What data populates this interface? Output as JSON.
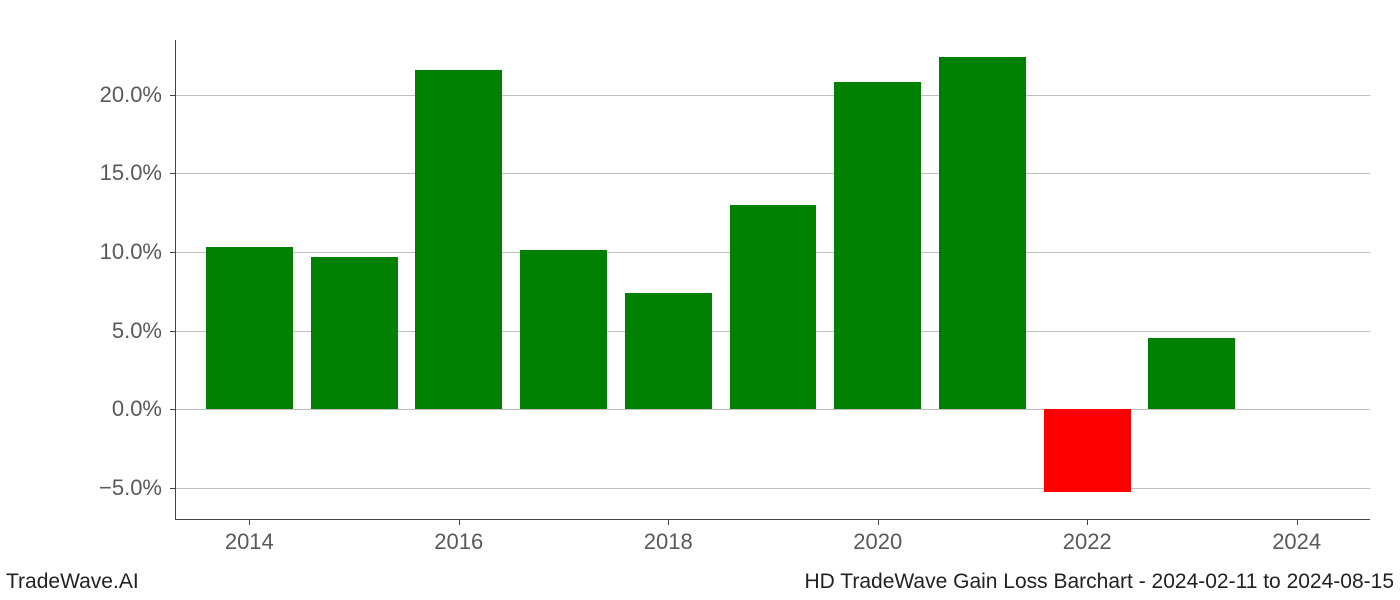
{
  "chart": {
    "type": "bar",
    "background_color": "#ffffff",
    "grid_color": "#bfbfbf",
    "axis_color": "#444444",
    "tick_label_color": "#595959",
    "tick_label_fontsize": 22,
    "positive_color": "#008000",
    "negative_color": "#ff0000",
    "ylim": [
      -7,
      23.5
    ],
    "ytick_step": 5,
    "yticks": [
      {
        "value": -5,
        "label": "−5.0%"
      },
      {
        "value": 0,
        "label": "0.0%"
      },
      {
        "value": 5,
        "label": "5.0%"
      },
      {
        "value": 10,
        "label": "10.0%"
      },
      {
        "value": 15,
        "label": "15.0%"
      },
      {
        "value": 20,
        "label": "20.0%"
      }
    ],
    "xlim": [
      2013.3,
      2024.7
    ],
    "xticks": [
      {
        "value": 2014,
        "label": "2014"
      },
      {
        "value": 2016,
        "label": "2016"
      },
      {
        "value": 2018,
        "label": "2018"
      },
      {
        "value": 2020,
        "label": "2020"
      },
      {
        "value": 2022,
        "label": "2022"
      },
      {
        "value": 2024,
        "label": "2024"
      }
    ],
    "bar_width_years": 0.83,
    "bars": [
      {
        "year": 2014,
        "value": 10.3
      },
      {
        "year": 2015,
        "value": 9.7
      },
      {
        "year": 2016,
        "value": 21.6
      },
      {
        "year": 2017,
        "value": 10.1
      },
      {
        "year": 2018,
        "value": 7.4
      },
      {
        "year": 2019,
        "value": 13.0
      },
      {
        "year": 2020,
        "value": 20.8
      },
      {
        "year": 2021,
        "value": 22.4
      },
      {
        "year": 2022,
        "value": -5.3
      },
      {
        "year": 2023,
        "value": 4.5
      }
    ]
  },
  "footer": {
    "left": "TradeWave.AI",
    "right": "HD TradeWave Gain Loss Barchart - 2024-02-11 to 2024-08-15"
  }
}
